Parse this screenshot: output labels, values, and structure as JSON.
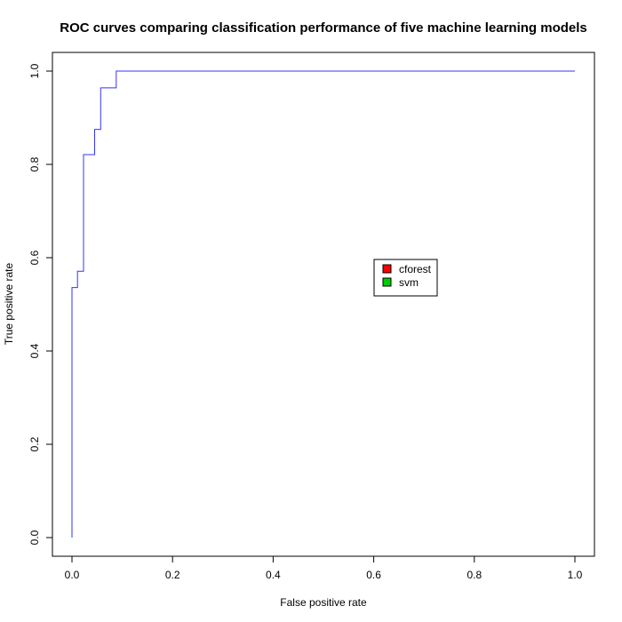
{
  "chart_data": {
    "type": "line",
    "title": "ROC curves comparing classification performance of five machine learning models",
    "xlabel": "False positive rate",
    "ylabel": "True positive rate",
    "xlim": [
      0,
      1
    ],
    "ylim": [
      0,
      1
    ],
    "x_ticks": [
      "0.0",
      "0.2",
      "0.4",
      "0.6",
      "0.8",
      "1.0"
    ],
    "y_ticks": [
      "0.0",
      "0.2",
      "0.4",
      "0.6",
      "0.8",
      "1.0"
    ],
    "grid": false,
    "legend": {
      "position": "center-right",
      "entries": [
        {
          "label": "cforest",
          "color": "#ff0000"
        },
        {
          "label": "svm",
          "color": "#00cc00"
        }
      ]
    },
    "series": [
      {
        "color": "#3333ff",
        "step": true,
        "x": [
          0.0,
          0.0,
          0.011,
          0.011,
          0.023,
          0.023,
          0.045,
          0.045,
          0.057,
          0.057,
          0.088,
          0.088,
          1.0
        ],
        "y": [
          0.0,
          0.536,
          0.536,
          0.571,
          0.571,
          0.821,
          0.821,
          0.875,
          0.875,
          0.964,
          0.964,
          1.0,
          1.0
        ]
      }
    ]
  }
}
